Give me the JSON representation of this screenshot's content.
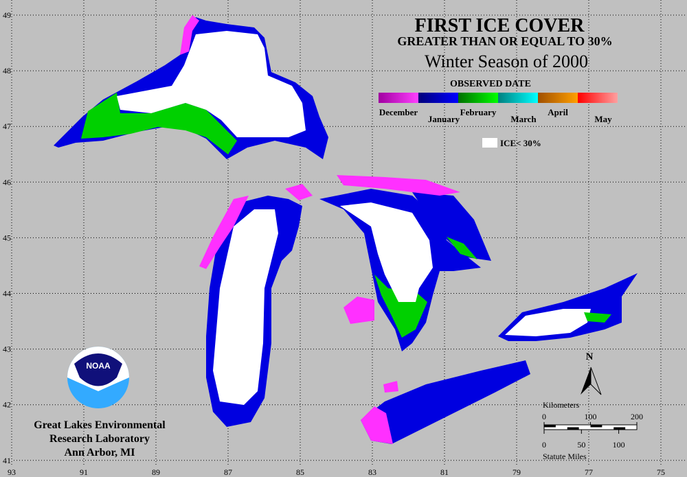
{
  "header": {
    "title": "FIRST ICE COVER",
    "subtitle": "GREATER THAN OR EQUAL TO 30%",
    "season": "Winter Season of 2000"
  },
  "legend": {
    "title": "OBSERVED DATE",
    "months": [
      {
        "label": "December",
        "colors": [
          "#a000a0",
          "#ff40ff"
        ]
      },
      {
        "label": "January",
        "colors": [
          "#00007a",
          "#0000ff"
        ]
      },
      {
        "label": "February",
        "colors": [
          "#007000",
          "#00ff00"
        ]
      },
      {
        "label": "March",
        "colors": [
          "#008080",
          "#00ffff"
        ]
      },
      {
        "label": "April",
        "colors": [
          "#a05000",
          "#ffa000"
        ]
      },
      {
        "label": "May",
        "colors": [
          "#ff0000",
          "#ffa0a0"
        ]
      }
    ],
    "ice_label": "ICE< 30%"
  },
  "map": {
    "lat_ticks": [
      49,
      48,
      47,
      46,
      45,
      44,
      43,
      42,
      41
    ],
    "lon_ticks": [
      93,
      91,
      89,
      87,
      85,
      83,
      81,
      79,
      77,
      75
    ]
  },
  "north": "N",
  "scale": {
    "km_title": "Kilometers",
    "km_ticks": [
      0,
      100,
      200
    ],
    "mi_title": "Statute Miles",
    "mi_ticks": [
      0,
      50,
      100
    ]
  },
  "logo": "NOAA",
  "credit": [
    "Great Lakes Environmental",
    "Research Laboratory",
    "Ann Arbor, MI"
  ]
}
